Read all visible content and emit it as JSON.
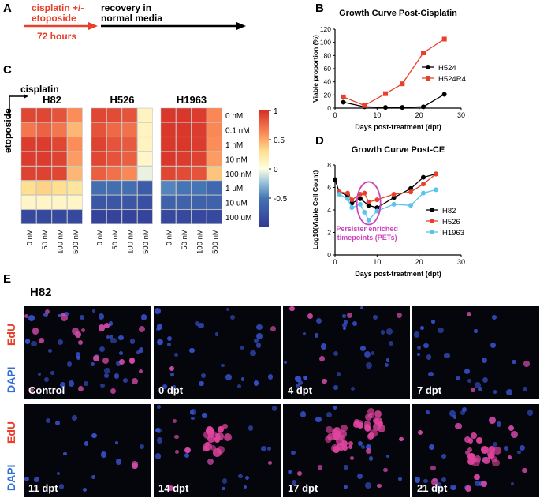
{
  "panels": {
    "a": "A",
    "b": "B",
    "c": "C",
    "d": "D",
    "e": "E"
  },
  "timeline": {
    "treatment": "cisplatin +/-\netoposide",
    "duration": "72 hours",
    "recovery": "recovery in\nnormal media"
  },
  "colors": {
    "red": "#e8402a",
    "black": "#000000",
    "blue": "#5bc3ee",
    "magenta": "#cc44bb",
    "edu": "#e8402a",
    "dapi": "#2e6fd8"
  },
  "chart_data": [
    {
      "type": "line",
      "title": "Growth Curve Post-Cisplatin",
      "xlabel": "Days post-treatment (dpt)",
      "ylabel": "Viable proportion (%)",
      "xlim": [
        0,
        30
      ],
      "ylim": [
        0,
        120
      ],
      "xticks": [
        "0",
        "10",
        "20",
        "30"
      ],
      "yticks": [
        "0",
        "20",
        "40",
        "60",
        "80",
        "100",
        "120"
      ],
      "legend": "right",
      "series": [
        {
          "name": "H524",
          "color": "#000000",
          "marker": "circle",
          "x": [
            2,
            7,
            12,
            16,
            21,
            26
          ],
          "y": [
            9,
            2,
            1,
            1,
            2,
            21
          ]
        },
        {
          "name": "H524R4",
          "color": "#e8402a",
          "marker": "square",
          "x": [
            2,
            7,
            12,
            16,
            21,
            26
          ],
          "y": [
            17,
            4,
            22,
            37,
            84,
            105
          ]
        }
      ]
    },
    {
      "type": "line",
      "title": "Growth Curve Post-CE",
      "xlabel": "Days post-treatment (dpt)",
      "ylabel": "Log10(Viable Cell Count)",
      "xlim": [
        0,
        30
      ],
      "ylim": [
        0,
        8
      ],
      "xticks": [
        "0",
        "10",
        "20",
        "30"
      ],
      "yticks": [
        "0",
        "2",
        "4",
        "6",
        "8"
      ],
      "legend": "right",
      "annotation": "Persister enriched\ntimepoints (PETs)",
      "series": [
        {
          "name": "H82",
          "color": "#000000",
          "x": [
            0,
            1,
            3,
            4,
            6,
            8,
            10,
            14,
            18,
            21,
            24
          ],
          "y": [
            6.7,
            5.6,
            5.3,
            4.6,
            5.0,
            4.4,
            4.2,
            5.1,
            5.9,
            6.9,
            7.2
          ]
        },
        {
          "name": "H526",
          "color": "#e8402a",
          "x": [
            1,
            3,
            4,
            6,
            7,
            8,
            10,
            14,
            18,
            21,
            24
          ],
          "y": [
            5.6,
            5.5,
            4.9,
            5.4,
            5.5,
            4.7,
            4.9,
            5.4,
            5.6,
            6.3,
            7.2
          ]
        },
        {
          "name": "H1963",
          "color": "#5bc3ee",
          "x": [
            1,
            3,
            4,
            6,
            7,
            8,
            10,
            14,
            18,
            21,
            24
          ],
          "y": [
            5.4,
            5.0,
            4.2,
            4.5,
            3.8,
            3.1,
            3.9,
            4.5,
            4.4,
            5.5,
            5.8
          ]
        }
      ]
    },
    {
      "type": "heatmap",
      "top_label": "cisplatin",
      "side_label": "etoposide",
      "cell_lines": [
        "H82",
        "H526",
        "H1963"
      ],
      "cisplatin_doses": [
        "0 nM",
        "50 nM",
        "100 nM",
        "500 nM"
      ],
      "etoposide_doses": [
        "0 nM",
        "0.1 nM",
        "1 nM",
        "10 nM",
        "100 nM",
        "1 uM",
        "10 uM",
        "100 uM"
      ],
      "colorbar_ticks": [
        "1",
        "0.5",
        "0",
        "-0.5"
      ],
      "colorbar_range": [
        -1,
        1
      ],
      "values": [
        [
          [
            0.9,
            0.9,
            0.85,
            0.6
          ],
          [
            0.7,
            0.78,
            0.7,
            0.45
          ],
          [
            0.95,
            0.95,
            0.9,
            0.6
          ],
          [
            0.95,
            0.95,
            0.92,
            0.55
          ],
          [
            0.92,
            0.92,
            0.9,
            0.45
          ],
          [
            0.3,
            0.35,
            0.3,
            0.25
          ],
          [
            0.1,
            0.1,
            0.1,
            0.1
          ],
          [
            -0.85,
            -0.85,
            -0.85,
            -0.85
          ]
        ],
        [
          [
            0.9,
            0.88,
            0.85,
            0.12
          ],
          [
            0.85,
            0.75,
            0.72,
            0.12
          ],
          [
            0.92,
            0.85,
            0.82,
            0.12
          ],
          [
            0.9,
            0.85,
            0.8,
            0.08
          ],
          [
            0.8,
            0.72,
            0.62,
            -0.05
          ],
          [
            -0.55,
            -0.55,
            -0.55,
            -0.7
          ],
          [
            -0.75,
            -0.75,
            -0.75,
            -0.8
          ],
          [
            -0.9,
            -0.9,
            -0.9,
            -0.9
          ]
        ],
        [
          [
            0.97,
            0.97,
            0.95,
            0.62
          ],
          [
            0.97,
            0.97,
            0.95,
            0.62
          ],
          [
            0.97,
            0.97,
            0.95,
            0.6
          ],
          [
            0.97,
            0.95,
            0.92,
            0.55
          ],
          [
            0.9,
            0.88,
            0.85,
            0.4
          ],
          [
            -0.45,
            -0.5,
            -0.5,
            -0.6
          ],
          [
            -0.65,
            -0.65,
            -0.65,
            -0.65
          ],
          [
            -0.85,
            -0.85,
            -0.85,
            -0.85
          ]
        ]
      ]
    }
  ],
  "microscopy": {
    "cell_line": "H82",
    "stain_edu": "EdU",
    "stain_dapi": "DAPI",
    "timepoints": [
      "Control",
      "0 dpt",
      "4 dpt",
      "7 dpt",
      "11 dpt",
      "14 dpt",
      "17 dpt",
      "21 dpt"
    ]
  }
}
